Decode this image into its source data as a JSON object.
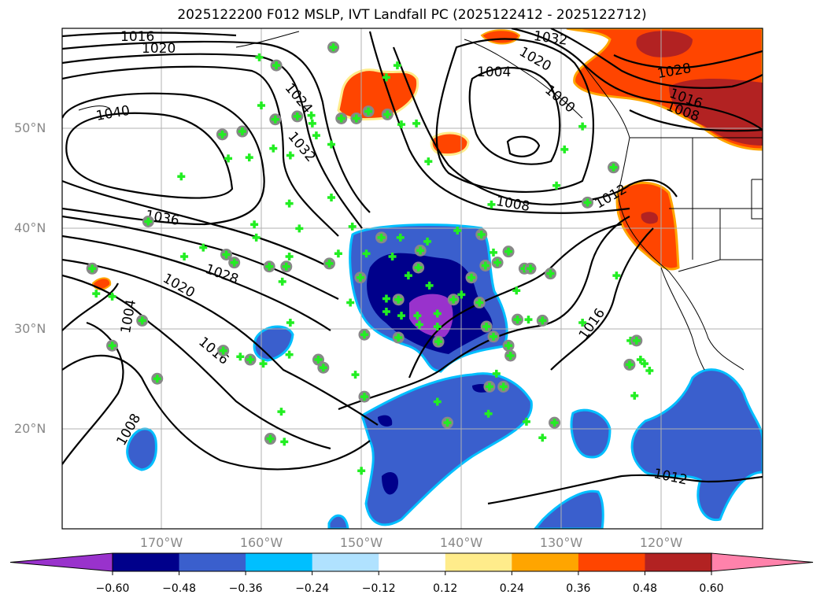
{
  "title": "2025122200 F012 MSLP, IVT Landfall PC (2025122412 - 2025122712)",
  "axes": {
    "lat_labels": [
      "50°N",
      "40°N",
      "30°N",
      "20°N"
    ],
    "lon_labels": [
      "170°W",
      "160°W",
      "150°W",
      "140°W",
      "130°W",
      "120°W"
    ],
    "extent": {
      "lon_min": -180,
      "lon_max": -110,
      "lat_min": 10,
      "lat_max": 60
    }
  },
  "colorbar": {
    "ticks": [
      "−0.60",
      "−0.48",
      "−0.36",
      "−0.24",
      "−0.12",
      "0.12",
      "0.24",
      "0.36",
      "0.48",
      "0.60"
    ],
    "colors": [
      "#9932cc",
      "#00008b",
      "#3a5fcd",
      "#00bfff",
      "#b0e2ff",
      "#ffffff",
      "#ffec8b",
      "#ffa500",
      "#ff4500",
      "#b22222",
      "#ff82ab"
    ]
  },
  "isobar_labels": [
    "1016",
    "1020",
    "1040",
    "1024",
    "1032",
    "1036",
    "1028",
    "1020",
    "1004",
    "1016",
    "1008",
    "1032",
    "1020",
    "1004",
    "1000",
    "1008",
    "1012",
    "1028",
    "1016",
    "1008",
    "1016",
    "1012"
  ],
  "markers": [
    [
      -160.3,
      57.1,
      0
    ],
    [
      -158.6,
      56.3,
      1
    ],
    [
      -168.1,
      45.2,
      0
    ],
    [
      -164.0,
      49.4,
      1
    ],
    [
      -162.0,
      49.7,
      1
    ],
    [
      -163.4,
      47.0,
      0
    ],
    [
      -161.3,
      47.1,
      0
    ],
    [
      -160.1,
      52.3,
      0
    ],
    [
      -158.7,
      50.9,
      1
    ],
    [
      -156.5,
      51.2,
      1
    ],
    [
      -155.1,
      51.3,
      0
    ],
    [
      -155.0,
      50.5,
      0
    ],
    [
      -154.6,
      49.3,
      0
    ],
    [
      -153.1,
      48.4,
      0
    ],
    [
      -158.9,
      48.0,
      0
    ],
    [
      -157.2,
      47.3,
      0
    ],
    [
      -152.9,
      58.1,
      1
    ],
    [
      -152.1,
      51.0,
      1
    ],
    [
      -150.6,
      51.0,
      1
    ],
    [
      -149.4,
      51.7,
      1
    ],
    [
      -147.5,
      51.4,
      1
    ],
    [
      -146.5,
      56.3,
      0
    ],
    [
      -147.6,
      55.1,
      0
    ],
    [
      -146.1,
      50.4,
      0
    ],
    [
      -144.6,
      50.5,
      0
    ],
    [
      -143.4,
      46.7,
      0
    ],
    [
      -171.4,
      40.7,
      1
    ],
    [
      -167.8,
      37.2,
      0
    ],
    [
      -165.9,
      38.1,
      0
    ],
    [
      -163.6,
      37.4,
      1
    ],
    [
      -162.8,
      36.6,
      1
    ],
    [
      -177.0,
      36.0,
      1
    ],
    [
      -176.6,
      33.5,
      0
    ],
    [
      -175.0,
      33.2,
      0
    ],
    [
      -172.0,
      30.8,
      1
    ],
    [
      -175.0,
      28.3,
      1
    ],
    [
      -170.5,
      25.0,
      1
    ],
    [
      -163.9,
      27.8,
      1
    ],
    [
      -162.2,
      27.2,
      0
    ],
    [
      -161.2,
      26.9,
      1
    ],
    [
      -159.9,
      26.5,
      0
    ],
    [
      -157.3,
      27.4,
      0
    ],
    [
      -154.4,
      26.9,
      1
    ],
    [
      -153.9,
      26.1,
      1
    ],
    [
      -150.7,
      25.4,
      0
    ],
    [
      -149.8,
      23.2,
      1
    ],
    [
      -158.1,
      21.7,
      0
    ],
    [
      -159.2,
      19.0,
      1
    ],
    [
      -157.8,
      18.7,
      0
    ],
    [
      -160.6,
      39.1,
      0
    ],
    [
      -160.8,
      40.4,
      0
    ],
    [
      -157.3,
      42.5,
      0
    ],
    [
      -156.3,
      40.0,
      0
    ],
    [
      -159.3,
      36.2,
      1
    ],
    [
      -157.6,
      36.2,
      1
    ],
    [
      -157.3,
      37.2,
      0
    ],
    [
      -158.0,
      34.7,
      0
    ],
    [
      -157.2,
      30.6,
      0
    ],
    [
      -153.1,
      43.1,
      0
    ],
    [
      -153.3,
      36.5,
      1
    ],
    [
      -152.4,
      37.5,
      0
    ],
    [
      -151.0,
      40.2,
      0
    ],
    [
      -150.2,
      35.1,
      1
    ],
    [
      -149.6,
      37.5,
      0
    ],
    [
      -151.2,
      32.6,
      0
    ],
    [
      -149.8,
      29.4,
      1
    ],
    [
      -148.1,
      39.1,
      1
    ],
    [
      -146.2,
      39.1,
      0
    ],
    [
      -147.0,
      37.2,
      0
    ],
    [
      -145.4,
      35.3,
      0
    ],
    [
      -144.4,
      36.1,
      1
    ],
    [
      -144.2,
      37.8,
      1
    ],
    [
      -143.5,
      38.7,
      0
    ],
    [
      -143.3,
      34.3,
      0
    ],
    [
      -147.6,
      33.0,
      0
    ],
    [
      -146.4,
      32.9,
      1
    ],
    [
      -147.6,
      31.7,
      0
    ],
    [
      -146.1,
      31.3,
      0
    ],
    [
      -144.5,
      31.3,
      0
    ],
    [
      -144.3,
      30.4,
      0
    ],
    [
      -142.5,
      31.5,
      0
    ],
    [
      -142.5,
      30.2,
      0
    ],
    [
      -142.4,
      28.7,
      1
    ],
    [
      -146.4,
      29.1,
      1
    ],
    [
      -140.9,
      32.9,
      1
    ],
    [
      -140.1,
      33.4,
      0
    ],
    [
      -140.5,
      39.8,
      0
    ],
    [
      -138.1,
      39.4,
      1
    ],
    [
      -138.3,
      32.6,
      1
    ],
    [
      -137.7,
      36.3,
      1
    ],
    [
      -139.1,
      35.1,
      1
    ],
    [
      -137.6,
      30.2,
      1
    ],
    [
      -136.9,
      29.2,
      1
    ],
    [
      -136.9,
      37.6,
      0
    ],
    [
      -136.5,
      36.6,
      1
    ],
    [
      -135.4,
      37.7,
      1
    ],
    [
      -135.4,
      28.3,
      1
    ],
    [
      -135.2,
      27.3,
      1
    ],
    [
      -137.1,
      42.4,
      0
    ],
    [
      -134.6,
      33.8,
      0
    ],
    [
      -133.8,
      36.0,
      1
    ],
    [
      -133.2,
      36.0,
      1
    ],
    [
      -131.2,
      35.5,
      1
    ],
    [
      -134.5,
      30.9,
      1
    ],
    [
      -133.4,
      30.9,
      0
    ],
    [
      -132.0,
      30.8,
      1
    ],
    [
      -136.6,
      25.5,
      0
    ],
    [
      -137.3,
      24.2,
      1
    ],
    [
      -135.9,
      24.2,
      1
    ],
    [
      -137.4,
      21.5,
      0
    ],
    [
      -142.5,
      22.7,
      0
    ],
    [
      -141.5,
      20.6,
      1
    ],
    [
      -133.6,
      20.7,
      0
    ],
    [
      -132.0,
      19.1,
      0
    ],
    [
      -130.8,
      20.6,
      1
    ],
    [
      -150.1,
      15.8,
      0
    ],
    [
      -127.5,
      42.6,
      1
    ],
    [
      -128.0,
      30.6,
      0
    ],
    [
      -124.6,
      35.3,
      0
    ],
    [
      -130.6,
      44.3,
      0
    ],
    [
      -129.8,
      47.9,
      0
    ],
    [
      -128.0,
      50.2,
      0
    ],
    [
      -124.9,
      46.1,
      1
    ],
    [
      -123.2,
      28.8,
      0
    ],
    [
      -122.6,
      28.8,
      1
    ],
    [
      -122.2,
      26.9,
      0
    ],
    [
      -121.8,
      26.5,
      0
    ],
    [
      -121.3,
      25.8,
      0
    ],
    [
      -123.3,
      26.4,
      1
    ],
    [
      -122.8,
      23.3,
      0
    ]
  ]
}
